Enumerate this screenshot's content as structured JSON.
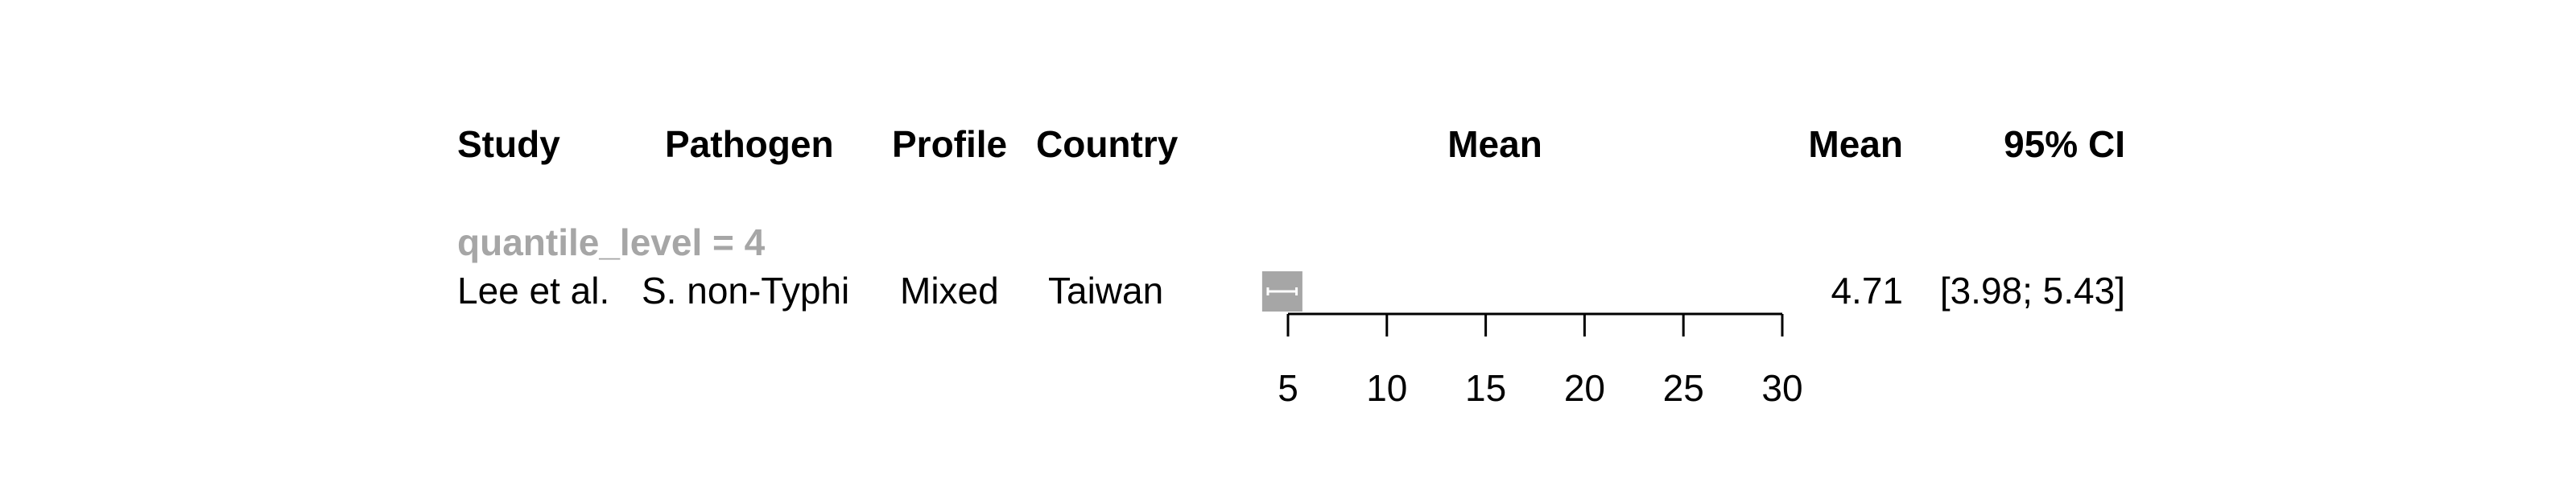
{
  "headers": {
    "study": "Study",
    "pathogen": "Pathogen",
    "profile": "Profile",
    "country": "Country",
    "plot": "Mean",
    "mean": "Mean",
    "ci": "95% CI"
  },
  "group_label": "quantile_level = 4",
  "row": {
    "study": "Lee et al.",
    "pathogen": "S. non-Typhi",
    "profile": "Mixed",
    "country": "Taiwan",
    "mean_text": "4.71",
    "ci_text": "[3.98; 5.43]"
  },
  "colors": {
    "marker": "#a6a6a6",
    "group_text": "#a6a6a6",
    "axis": "#000000"
  },
  "chart_data": {
    "type": "forest",
    "xlim": [
      5,
      30
    ],
    "ticks": [
      5,
      10,
      15,
      20,
      25,
      30
    ],
    "tick_labels": [
      "5",
      "10",
      "15",
      "20",
      "25",
      "30"
    ],
    "points": [
      {
        "study": "Lee et al.",
        "mean": 4.71,
        "ci_low": 3.98,
        "ci_high": 5.43
      }
    ]
  }
}
